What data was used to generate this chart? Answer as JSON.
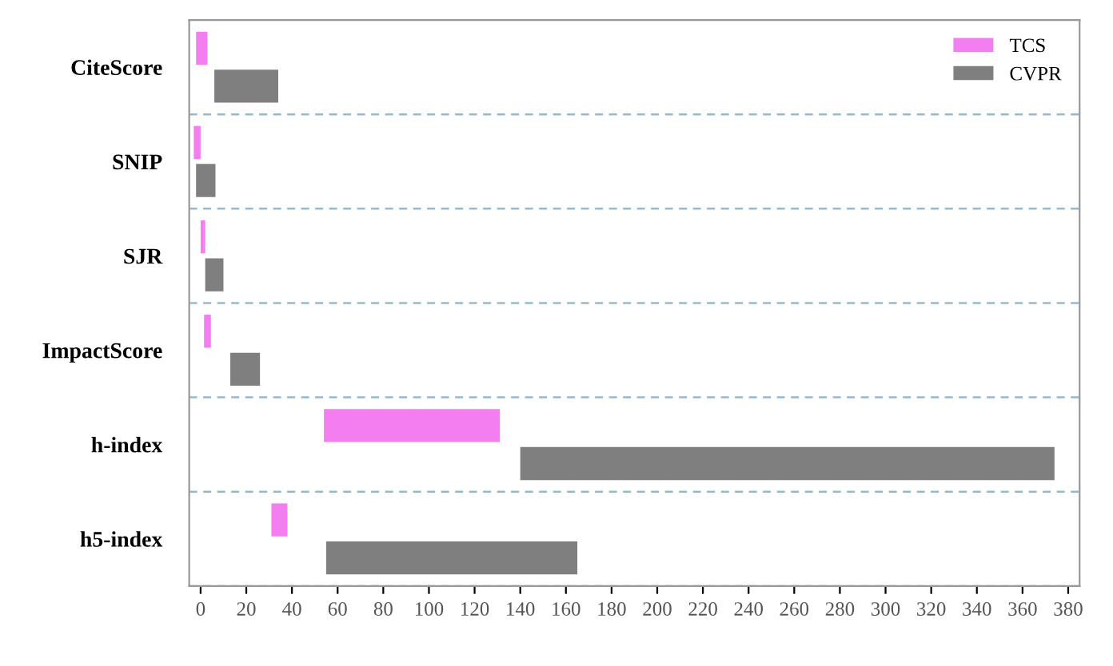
{
  "chart_data": {
    "type": "bar",
    "orientation": "horizontal",
    "categories": [
      "CiteScore",
      "SNIP",
      "SJR",
      "ImpactScore",
      "h-index",
      "h5-index"
    ],
    "series": [
      {
        "name": "TCS",
        "color": "#f27ef0",
        "base": [
          -2,
          -3,
          0,
          1.5,
          54,
          31
        ],
        "values": [
          5,
          3,
          2,
          3,
          77,
          7
        ]
      },
      {
        "name": "CVPR",
        "color": "#7f7f7f",
        "base": [
          6,
          -2,
          2,
          13,
          140,
          55
        ],
        "values": [
          28,
          8.5,
          8,
          13,
          234,
          110
        ]
      }
    ],
    "xlim": [
      -5,
      385
    ],
    "xticks": [
      0,
      20,
      40,
      60,
      80,
      100,
      120,
      140,
      160,
      180,
      200,
      220,
      240,
      260,
      280,
      300,
      320,
      340,
      360,
      380
    ],
    "grid": "y",
    "legend": "top right"
  }
}
